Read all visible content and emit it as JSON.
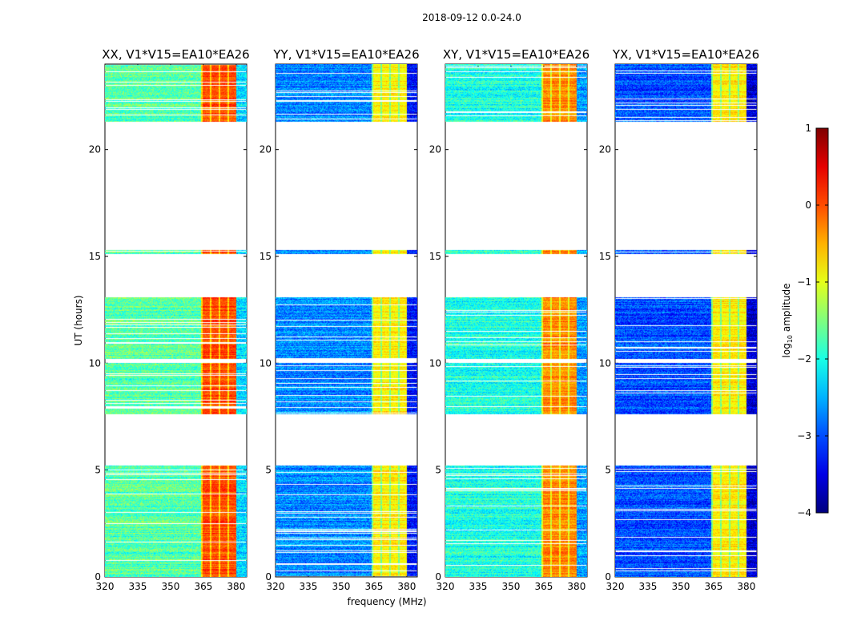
{
  "chart_data": {
    "type": "heatmap",
    "suptitle": "2018-09-12 0.0-24.0",
    "xlabel": "frequency (MHz)",
    "ylabel": "UT (hours)",
    "xlim": [
      320,
      384.8
    ],
    "ylim": [
      0,
      24
    ],
    "xticks": [
      "320",
      "335",
      "350",
      "365",
      "380"
    ],
    "yticks": [
      "0",
      "5",
      "10",
      "15",
      "20"
    ],
    "panels": [
      {
        "title": "XX, V1*V15=EA10*EA26",
        "baseline_log10": -1.7,
        "band_log10": 0.0
      },
      {
        "title": "YY, V1*V15=EA10*EA26",
        "baseline_log10": -2.7,
        "band_log10": -0.8
      },
      {
        "title": "XY, V1*V15=EA10*EA26",
        "baseline_log10": -2.0,
        "band_log10": -0.3
      },
      {
        "title": "YX, V1*V15=EA10*EA26",
        "baseline_log10": -3.0,
        "band_log10": -0.8
      }
    ],
    "band_mhz": [
      364,
      380
    ],
    "data_time_ranges_hours": [
      [
        0,
        5.2
      ],
      [
        7.6,
        10.0
      ],
      [
        10.2,
        13.1
      ],
      [
        15.1,
        15.3
      ],
      [
        21.3,
        24
      ]
    ],
    "colorbar": {
      "label": "log10 amplitude",
      "label_main": "log",
      "label_sub": "10",
      "label_rest": " amplitude",
      "range": [
        -4,
        1
      ],
      "ticks": [
        "1",
        "0",
        "−1",
        "−2",
        "−3",
        "−4"
      ],
      "colormap": "jet"
    }
  }
}
